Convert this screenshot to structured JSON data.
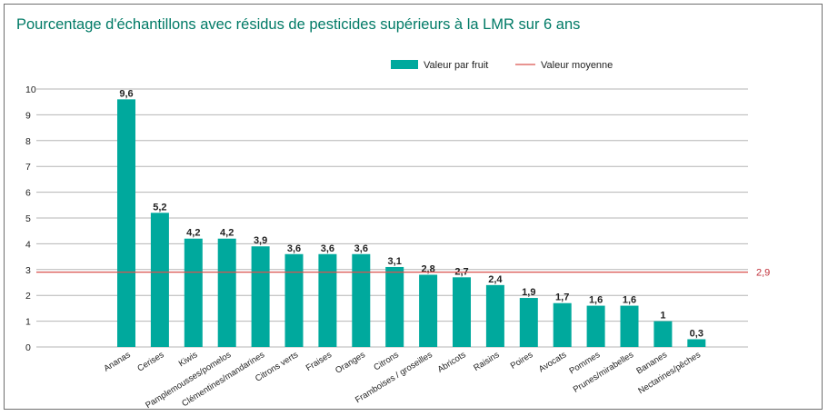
{
  "chart_data": {
    "type": "bar",
    "title": "Pourcentage d'échantillons avec résidus de pesticides supérieurs à la LMR  sur 6 ans",
    "xlabel": "",
    "ylabel": "",
    "ylim": [
      0,
      10
    ],
    "yticks": [
      "0",
      "1",
      "2",
      "3",
      "4",
      "5",
      "6",
      "7",
      "8",
      "9",
      "10"
    ],
    "categories": [
      "Ananas",
      "Cerises",
      "Kiwis",
      "Pamplemousses/pomelos",
      "Clémentines/mandarines",
      "Citrons verts",
      "Fraises",
      "Oranges",
      "Citrons",
      "Framboises / groseilles",
      "Abricots",
      "Raisins",
      "Poires",
      "Avocats",
      "Pommes",
      "Prunes/mirabelles",
      "Bananes",
      "Nectarines/pêches"
    ],
    "values": [
      9.6,
      5.2,
      4.2,
      4.2,
      3.9,
      3.6,
      3.6,
      3.6,
      3.1,
      2.8,
      2.7,
      2.4,
      1.9,
      1.7,
      1.6,
      1.6,
      1.0,
      0.3
    ],
    "data_labels": [
      "9,6",
      "5,2",
      "4,2",
      "4,2",
      "3,9",
      "3,6",
      "3,6",
      "3,6",
      "3,1",
      "2,8",
      "2,7",
      "2,4",
      "1,9",
      "1,7",
      "1,6",
      "1,6",
      "1",
      "0,3"
    ],
    "mean": 2.9,
    "mean_label": "2,9",
    "legend": {
      "position": "top-right",
      "entries": [
        {
          "name": "Valeur par fruit",
          "kind": "bar"
        },
        {
          "name": "Valeur moyenne",
          "kind": "line"
        }
      ]
    },
    "grid": true,
    "colors": {
      "bar": "#00a99d",
      "mean_line": "#d9534f",
      "grid": "#b5b5b5",
      "title": "#007a66"
    }
  }
}
